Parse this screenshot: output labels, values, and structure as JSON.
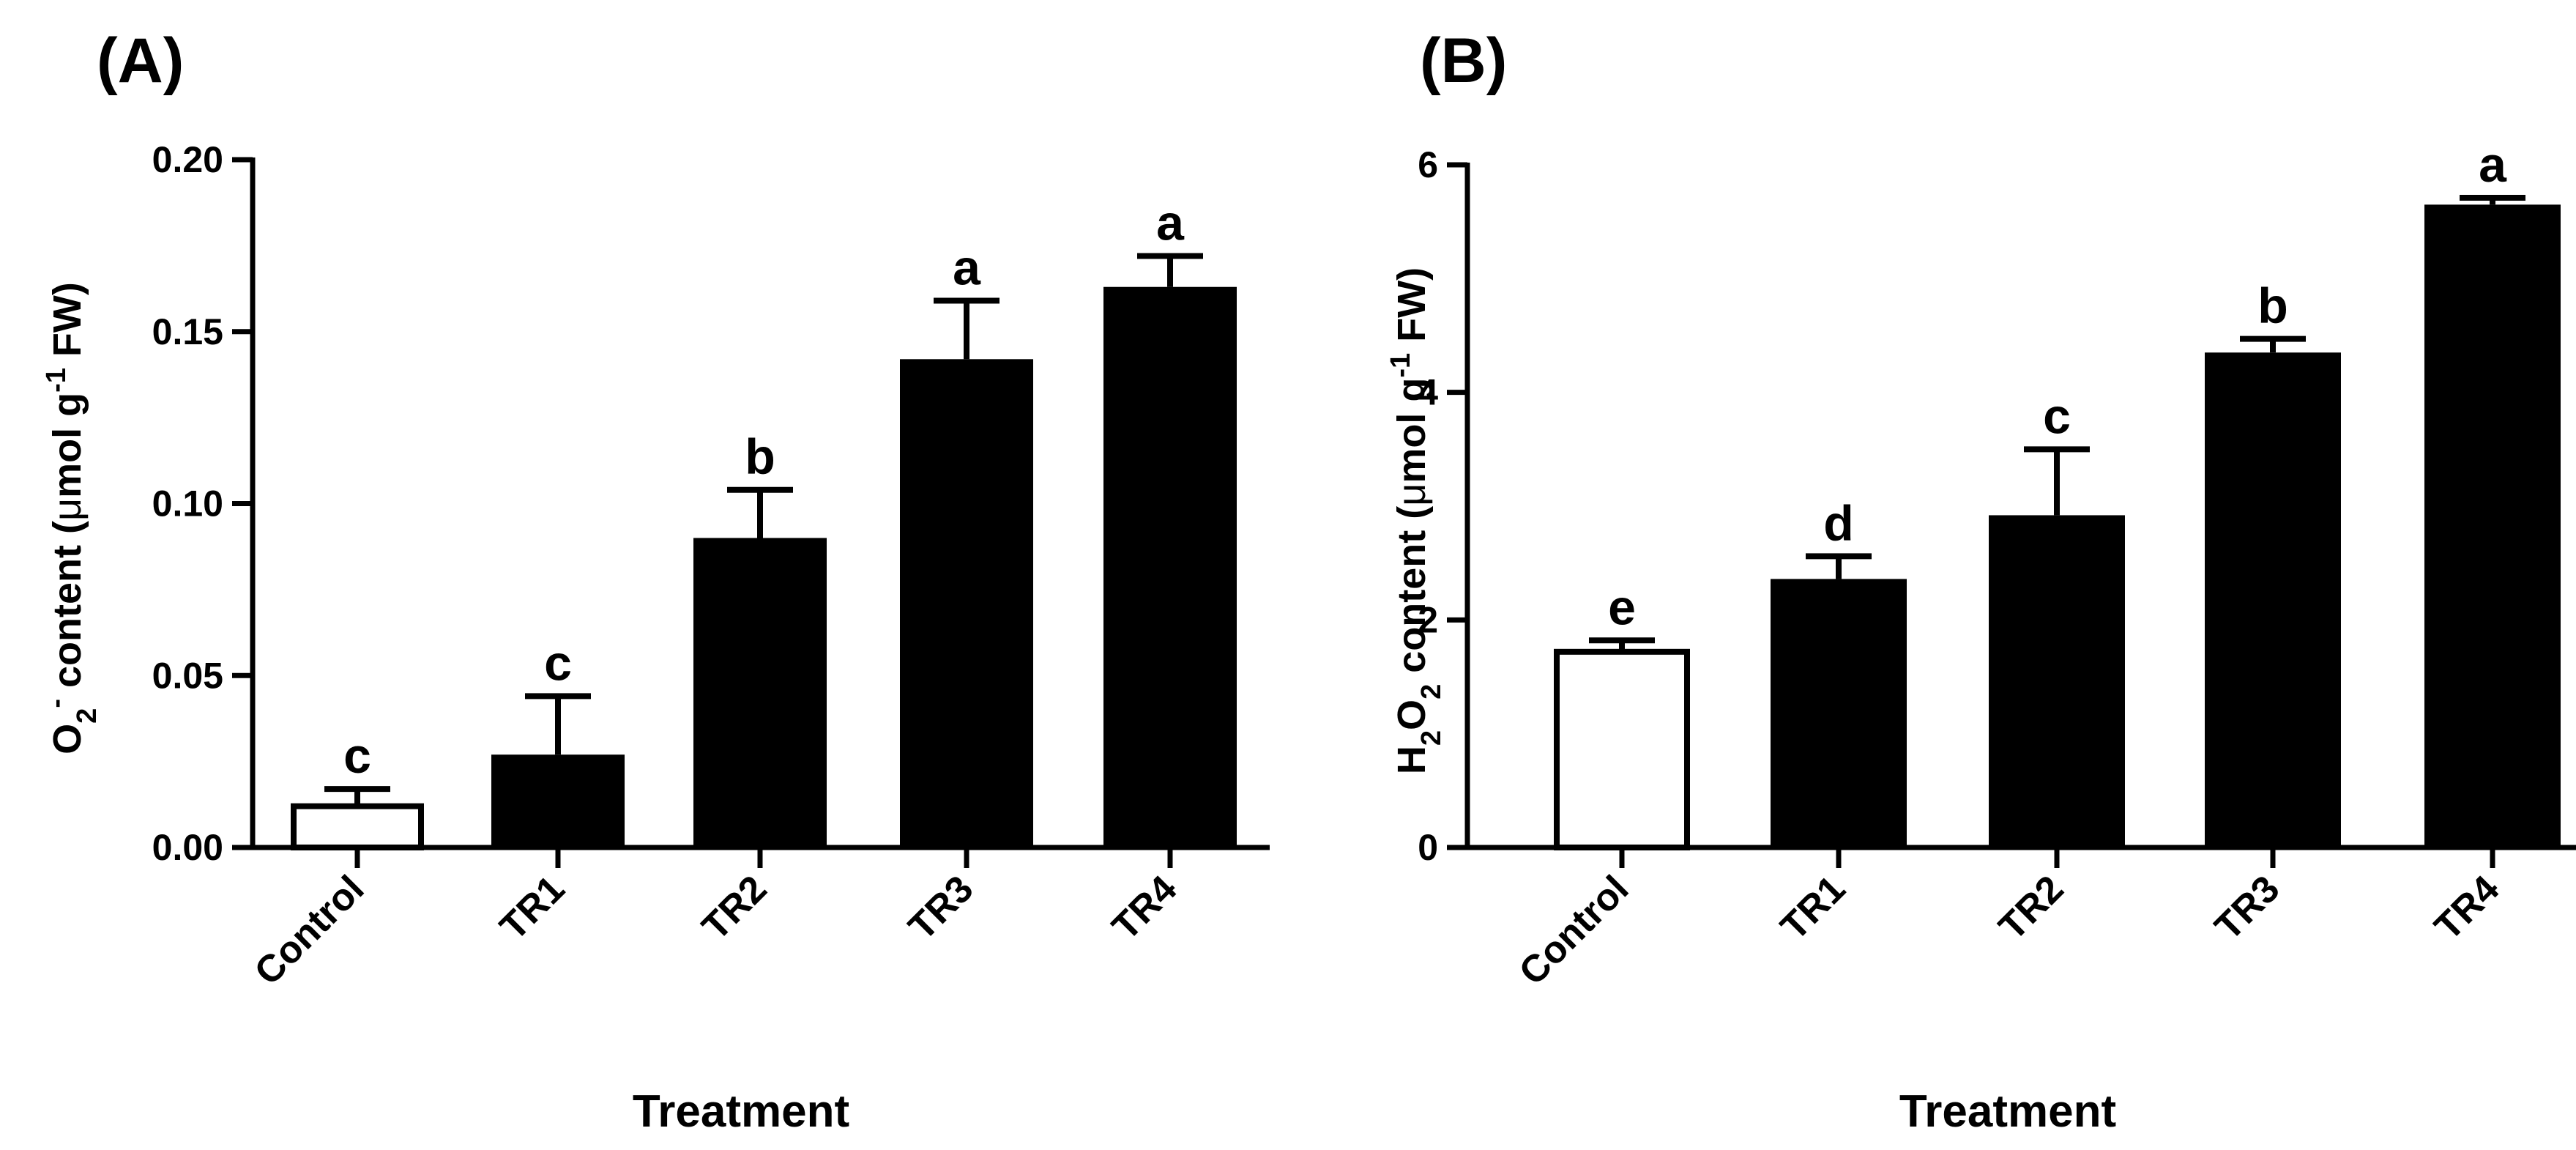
{
  "chart_data": [
    {
      "type": "bar",
      "panel_label": "(A)",
      "categories": [
        "Control",
        "TR1",
        "TR2",
        "TR3",
        "TR4"
      ],
      "values": [
        0.012,
        0.027,
        0.09,
        0.142,
        0.163
      ],
      "errors": [
        0.005,
        0.017,
        0.014,
        0.017,
        0.009
      ],
      "significance": [
        "c",
        "c",
        "b",
        "a",
        "a"
      ],
      "bar_fills": [
        "#ffffff",
        "#000000",
        "#000000",
        "#000000",
        "#000000"
      ],
      "xlabel": "Treatment",
      "ylabel": {
        "prefix": "O",
        "sub": "2",
        "sup": "-",
        "middle": " content (",
        "mu": "μ",
        "unit_mid": "mol g",
        "unit_sup": "-1",
        "unit_end": " FW)"
      },
      "ylim": [
        0,
        0.2
      ],
      "yticks": [
        "0.00",
        "0.05",
        "0.10",
        "0.15",
        "0.20"
      ],
      "ytick_values": [
        0,
        0.05,
        0.1,
        0.15,
        0.2
      ],
      "grid": false
    },
    {
      "type": "bar",
      "panel_label": "(B)",
      "categories": [
        "Control",
        "TR1",
        "TR2",
        "TR3",
        "TR4"
      ],
      "values": [
        1.72,
        2.36,
        2.92,
        4.35,
        5.65
      ],
      "errors": [
        0.1,
        0.2,
        0.58,
        0.12,
        0.06
      ],
      "significance": [
        "e",
        "d",
        "c",
        "b",
        "a"
      ],
      "bar_fills": [
        "#ffffff",
        "#000000",
        "#000000",
        "#000000",
        "#000000"
      ],
      "xlabel": "Treatment",
      "ylabel": {
        "prefix": "H",
        "sub": "2",
        "mid": "O",
        "sub2": "2",
        "middle": " content (",
        "mu": "μ",
        "unit_mid": "mol g",
        "unit_sup": "-1",
        "unit_end": " FW)"
      },
      "ylim": [
        0,
        6
      ],
      "yticks": [
        "0",
        "2",
        "4",
        "6"
      ],
      "ytick_values": [
        0,
        2,
        4,
        6
      ],
      "grid": false
    }
  ]
}
